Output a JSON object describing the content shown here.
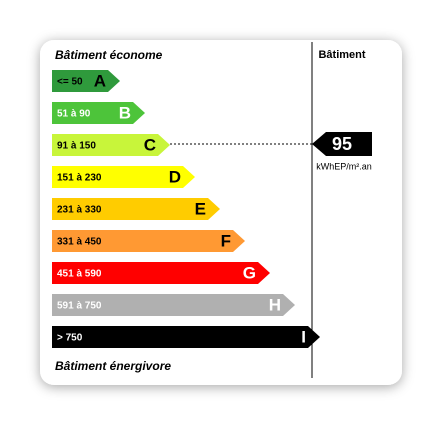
{
  "header": {
    "left": "Bâtiment économe",
    "right": "Bâtiment"
  },
  "classes": [
    {
      "range": "<= 50",
      "letter": "A",
      "color": "#2f9a3c"
    },
    {
      "range": "51 à 90",
      "letter": "B",
      "color": "#4dc43a"
    },
    {
      "range": "91 à 150",
      "letter": "C",
      "color": "#c8f53a"
    },
    {
      "range": "151 à 230",
      "letter": "D",
      "color": "#ffff00"
    },
    {
      "range": "231 à 330",
      "letter": "E",
      "color": "#ffcc00"
    },
    {
      "range": "331 à 450",
      "letter": "F",
      "color": "#ff9933"
    },
    {
      "range": "451 à 590",
      "letter": "G",
      "color": "#ff0000"
    },
    {
      "range": "591 à 750",
      "letter": "H",
      "color": "#b0b0b0"
    },
    {
      "range": "> 750",
      "letter": "I",
      "color": "#000000"
    }
  ],
  "indicator": {
    "value": 95,
    "unit": "kWhEP/m².an"
  },
  "footer": "Bâtiment énergivore"
}
